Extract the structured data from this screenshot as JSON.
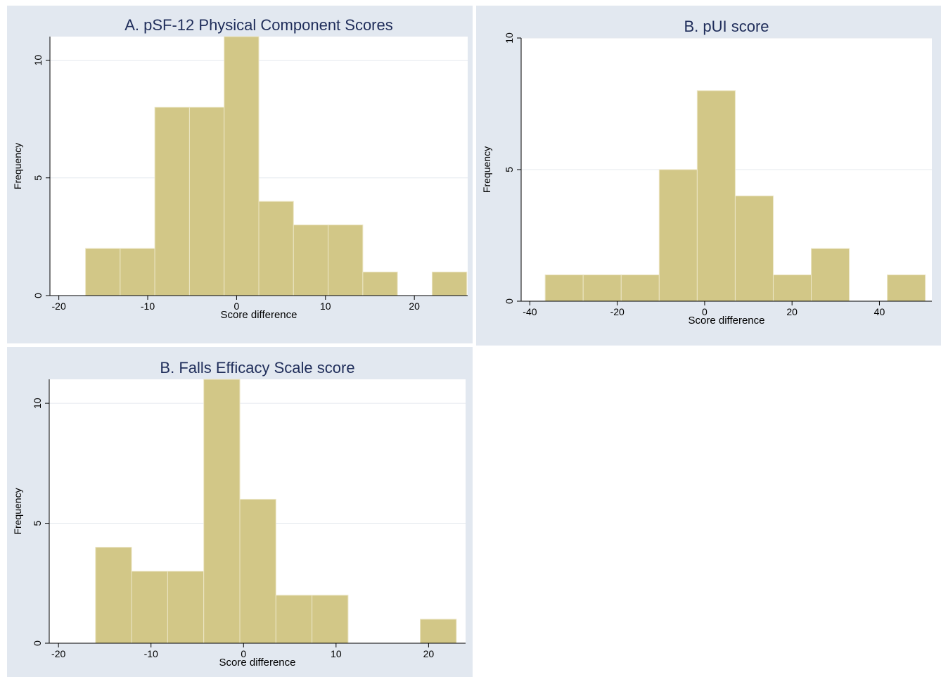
{
  "chart_data": [
    {
      "type": "bar",
      "title": "A. pSF-12 Physical Component Scores",
      "xlabel": "Score difference",
      "ylabel": "Frequency",
      "xlim": [
        -21,
        26
      ],
      "ylim": [
        0,
        11
      ],
      "xticks": [
        -20,
        -10,
        0,
        10,
        20
      ],
      "yticks": [
        0,
        5,
        10
      ],
      "bins": [
        {
          "x0": -17,
          "x1": -13.1,
          "value": 2
        },
        {
          "x0": -13.1,
          "x1": -9.2,
          "value": 2
        },
        {
          "x0": -9.2,
          "x1": -5.3,
          "value": 8
        },
        {
          "x0": -5.3,
          "x1": -1.4,
          "value": 8
        },
        {
          "x0": -1.4,
          "x1": 2.5,
          "value": 11
        },
        {
          "x0": 2.5,
          "x1": 6.4,
          "value": 4
        },
        {
          "x0": 6.4,
          "x1": 10.3,
          "value": 3
        },
        {
          "x0": 10.3,
          "x1": 14.2,
          "value": 3
        },
        {
          "x0": 14.2,
          "x1": 18.1,
          "value": 1
        },
        {
          "x0": 18.1,
          "x1": 22.0,
          "value": 0
        },
        {
          "x0": 22.0,
          "x1": 25.9,
          "value": 1
        }
      ]
    },
    {
      "type": "bar",
      "title": "B. pUI score",
      "xlabel": "Score difference",
      "ylabel": "Frequency",
      "xlim": [
        -42,
        52
      ],
      "ylim": [
        0,
        10
      ],
      "xticks": [
        -40,
        -20,
        0,
        20,
        40
      ],
      "yticks": [
        0,
        5,
        10
      ],
      "bins": [
        {
          "x0": -36.5,
          "x1": -27.8,
          "value": 1
        },
        {
          "x0": -27.8,
          "x1": -19.1,
          "value": 1
        },
        {
          "x0": -19.1,
          "x1": -10.4,
          "value": 1
        },
        {
          "x0": -10.4,
          "x1": -1.7,
          "value": 5
        },
        {
          "x0": -1.7,
          "x1": 7.0,
          "value": 8
        },
        {
          "x0": 7.0,
          "x1": 15.7,
          "value": 4
        },
        {
          "x0": 15.7,
          "x1": 24.4,
          "value": 1
        },
        {
          "x0": 24.4,
          "x1": 33.1,
          "value": 2
        },
        {
          "x0": 33.1,
          "x1": 41.8,
          "value": 0
        },
        {
          "x0": 41.8,
          "x1": 50.5,
          "value": 1
        }
      ]
    },
    {
      "type": "bar",
      "title": "B. Falls Efficacy Scale score",
      "xlabel": "Score difference",
      "ylabel": "Frequency",
      "xlim": [
        -21,
        24
      ],
      "ylim": [
        0,
        11
      ],
      "xticks": [
        -20,
        -10,
        0,
        10,
        20
      ],
      "yticks": [
        0,
        5,
        10
      ],
      "bins": [
        {
          "x0": -16,
          "x1": -12.1,
          "value": 4
        },
        {
          "x0": -12.1,
          "x1": -8.2,
          "value": 3
        },
        {
          "x0": -8.2,
          "x1": -4.3,
          "value": 3
        },
        {
          "x0": -4.3,
          "x1": -0.4,
          "value": 11
        },
        {
          "x0": -0.4,
          "x1": 3.5,
          "value": 6
        },
        {
          "x0": 3.5,
          "x1": 7.4,
          "value": 2
        },
        {
          "x0": 7.4,
          "x1": 11.3,
          "value": 2
        },
        {
          "x0": 11.3,
          "x1": 15.2,
          "value": 0
        },
        {
          "x0": 15.2,
          "x1": 19.1,
          "value": 0
        },
        {
          "x0": 19.1,
          "x1": 23.0,
          "value": 1
        }
      ]
    }
  ],
  "colors": {
    "panel_bg": "#e2e8f0",
    "plot_bg": "#ffffff",
    "bar_fill": "#d2c787",
    "bar_stroke": "#ece6c6",
    "grid": "#e4e8ee",
    "axis": "#000000"
  }
}
